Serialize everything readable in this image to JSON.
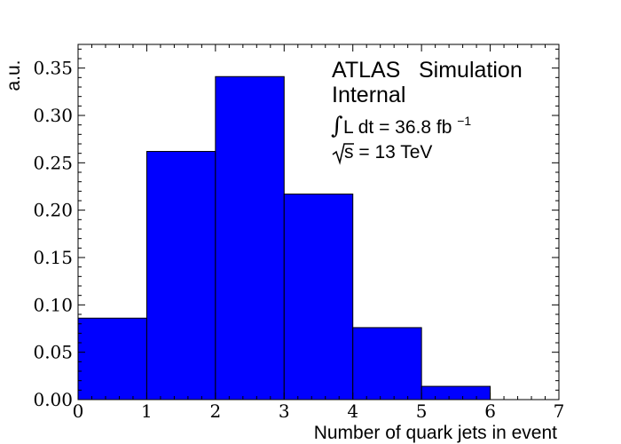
{
  "chart_data": {
    "type": "bar",
    "histogram": true,
    "bin_edges": [
      0,
      1,
      2,
      3,
      4,
      5,
      6
    ],
    "values": [
      0.086,
      0.262,
      0.341,
      0.217,
      0.076,
      0.014
    ],
    "xlabel": "Number of quark jets in event",
    "ylabel": "a.u.",
    "xlim": [
      0,
      7
    ],
    "ylim": [
      0,
      0.375
    ],
    "x_ticks": [
      "0",
      "1",
      "2",
      "3",
      "4",
      "5",
      "6",
      "7"
    ],
    "y_ticks": [
      "0.00",
      "0.05",
      "0.10",
      "0.15",
      "0.20",
      "0.25",
      "0.30",
      "0.35"
    ],
    "y_tick_values": [
      0,
      0.05,
      0.1,
      0.15,
      0.2,
      0.25,
      0.3,
      0.35
    ],
    "grid": false,
    "bar_color": "#0000ff",
    "edge_color": "#000000",
    "annotations": {
      "line1_a": "ATLAS",
      "line1_b": "Simulation",
      "line2": "Internal",
      "lumi_main": "L dt = 36.8 fb",
      "lumi_exp": "−1",
      "energy_sym": "s",
      "energy_rest": " = 13 TeV"
    }
  }
}
